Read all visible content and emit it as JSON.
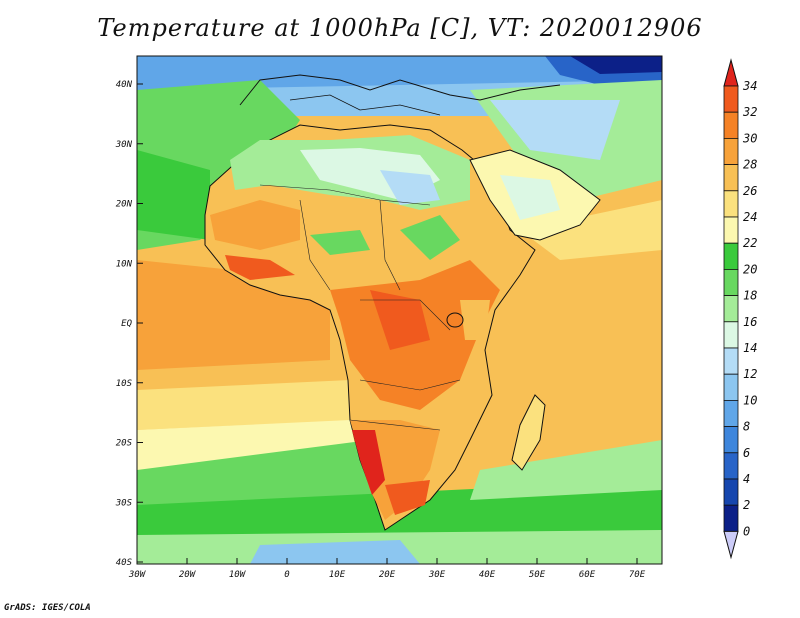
{
  "title": "Temperature at 1000hPa [C], VT: 2020012906",
  "credit": "GrADS: IGES/COLA",
  "map": {
    "lat_ticks": [
      "40N",
      "30N",
      "20N",
      "10N",
      "EQ",
      "10S",
      "20S",
      "30S",
      "40S"
    ],
    "lon_ticks": [
      "30W",
      "20W",
      "10W",
      "0",
      "10E",
      "20E",
      "30E",
      "40E",
      "50E",
      "60E",
      "70E"
    ]
  },
  "colorbar": {
    "labels": [
      "34",
      "32",
      "30",
      "28",
      "26",
      "24",
      "22",
      "20",
      "18",
      "16",
      "14",
      "12",
      "10",
      "8",
      "6",
      "4",
      "2",
      "0"
    ],
    "colors": [
      "#e0241c",
      "#f05a1e",
      "#f58226",
      "#f7a23a",
      "#f8c055",
      "#fbe17e",
      "#fcf8b0",
      "#3aca3c",
      "#68d860",
      "#a4ec98",
      "#dcf8e4",
      "#b4dcf6",
      "#8cc6f0",
      "#60a6e8",
      "#3e86dc",
      "#2864c8",
      "#1646ae",
      "#0c2088",
      "#ccccf8"
    ]
  }
}
